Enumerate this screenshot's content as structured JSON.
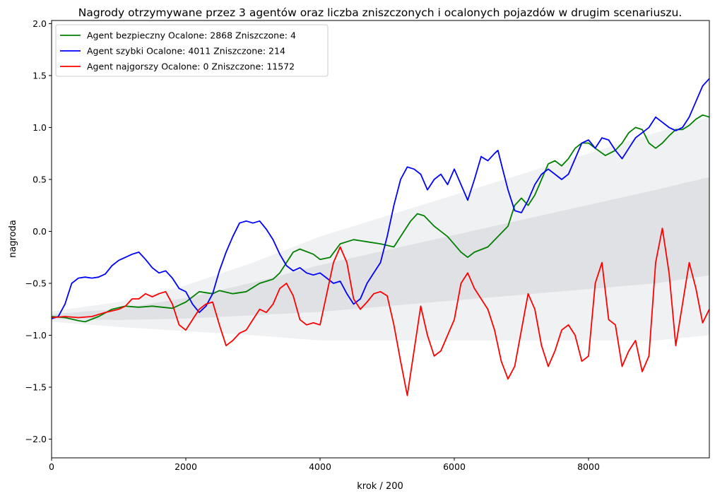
{
  "chart_data": {
    "type": "line",
    "title": "Nagrody otrzymywane przez 3 agentów oraz liczba zniszczonych i ocalonych pojazdów w drugim scenariuszu.",
    "xlabel": "krok / 200",
    "ylabel": "nagroda",
    "xlim": [
      0,
      9800
    ],
    "ylim": [
      -2.18,
      2.03
    ],
    "x_ticks": [
      0,
      2000,
      4000,
      6000,
      8000
    ],
    "y_ticks": [
      -2.0,
      -1.5,
      -1.0,
      -0.5,
      0.0,
      0.5,
      1.0,
      1.5,
      2.0
    ],
    "x_tick_labels": [
      "0",
      "2000",
      "4000",
      "6000",
      "8000"
    ],
    "y_tick_labels": [
      "−2.0",
      "−1.5",
      "−1.0",
      "−0.5",
      "0.0",
      "0.5",
      "1.0",
      "1.5",
      "2.0"
    ],
    "legend_position": "top-left",
    "background_band": {
      "x": [
        0,
        1000,
        2000,
        3000,
        4000,
        5000,
        6000,
        7000,
        8000,
        9000,
        9800
      ],
      "center": [
        -0.82,
        -0.8,
        -0.74,
        -0.65,
        -0.55,
        -0.45,
        -0.35,
        -0.25,
        -0.15,
        -0.05,
        0.05
      ],
      "halfwidth": [
        0.05,
        0.12,
        0.22,
        0.35,
        0.5,
        0.6,
        0.7,
        0.8,
        0.9,
        1.0,
        1.05
      ]
    },
    "series": [
      {
        "name": "Agent bezpieczny  Ocalone: 2868 Zniszczone: 4",
        "color": "#008000",
        "points": [
          [
            0,
            -0.82
          ],
          [
            200,
            -0.83
          ],
          [
            400,
            -0.86
          ],
          [
            500,
            -0.87
          ],
          [
            700,
            -0.82
          ],
          [
            900,
            -0.75
          ],
          [
            1100,
            -0.72
          ],
          [
            1300,
            -0.73
          ],
          [
            1500,
            -0.72
          ],
          [
            1800,
            -0.74
          ],
          [
            2000,
            -0.68
          ],
          [
            2200,
            -0.58
          ],
          [
            2400,
            -0.6
          ],
          [
            2500,
            -0.57
          ],
          [
            2700,
            -0.6
          ],
          [
            2900,
            -0.58
          ],
          [
            3100,
            -0.5
          ],
          [
            3300,
            -0.46
          ],
          [
            3400,
            -0.4
          ],
          [
            3500,
            -0.3
          ],
          [
            3600,
            -0.2
          ],
          [
            3700,
            -0.17
          ],
          [
            3900,
            -0.22
          ],
          [
            4000,
            -0.27
          ],
          [
            4150,
            -0.25
          ],
          [
            4300,
            -0.12
          ],
          [
            4500,
            -0.08
          ],
          [
            4700,
            -0.1
          ],
          [
            4900,
            -0.12
          ],
          [
            5100,
            -0.15
          ],
          [
            5200,
            -0.05
          ],
          [
            5350,
            0.1
          ],
          [
            5450,
            0.17
          ],
          [
            5550,
            0.15
          ],
          [
            5700,
            0.05
          ],
          [
            5900,
            -0.05
          ],
          [
            6100,
            -0.2
          ],
          [
            6200,
            -0.25
          ],
          [
            6300,
            -0.2
          ],
          [
            6500,
            -0.15
          ],
          [
            6650,
            -0.05
          ],
          [
            6800,
            0.05
          ],
          [
            6900,
            0.25
          ],
          [
            7000,
            0.32
          ],
          [
            7100,
            0.25
          ],
          [
            7200,
            0.35
          ],
          [
            7300,
            0.5
          ],
          [
            7400,
            0.65
          ],
          [
            7500,
            0.68
          ],
          [
            7600,
            0.63
          ],
          [
            7700,
            0.7
          ],
          [
            7800,
            0.8
          ],
          [
            7900,
            0.85
          ],
          [
            8000,
            0.85
          ],
          [
            8100,
            0.8
          ],
          [
            8250,
            0.73
          ],
          [
            8400,
            0.78
          ],
          [
            8500,
            0.85
          ],
          [
            8600,
            0.95
          ],
          [
            8700,
            1.0
          ],
          [
            8800,
            0.98
          ],
          [
            8900,
            0.85
          ],
          [
            9000,
            0.8
          ],
          [
            9100,
            0.85
          ],
          [
            9200,
            0.92
          ],
          [
            9300,
            0.98
          ],
          [
            9400,
            0.98
          ],
          [
            9500,
            1.02
          ],
          [
            9600,
            1.08
          ],
          [
            9700,
            1.12
          ],
          [
            9800,
            1.1
          ]
        ]
      },
      {
        "name": "Agent szybki Ocalone: 4011 Zniszczone: 214",
        "color": "#0000ff",
        "points": [
          [
            0,
            -0.84
          ],
          [
            100,
            -0.82
          ],
          [
            200,
            -0.7
          ],
          [
            300,
            -0.5
          ],
          [
            400,
            -0.45
          ],
          [
            500,
            -0.44
          ],
          [
            600,
            -0.45
          ],
          [
            700,
            -0.44
          ],
          [
            800,
            -0.41
          ],
          [
            900,
            -0.33
          ],
          [
            1000,
            -0.28
          ],
          [
            1100,
            -0.25
          ],
          [
            1200,
            -0.22
          ],
          [
            1300,
            -0.2
          ],
          [
            1400,
            -0.27
          ],
          [
            1500,
            -0.35
          ],
          [
            1600,
            -0.4
          ],
          [
            1700,
            -0.38
          ],
          [
            1800,
            -0.45
          ],
          [
            1900,
            -0.55
          ],
          [
            2000,
            -0.58
          ],
          [
            2100,
            -0.7
          ],
          [
            2200,
            -0.78
          ],
          [
            2300,
            -0.72
          ],
          [
            2400,
            -0.6
          ],
          [
            2500,
            -0.38
          ],
          [
            2600,
            -0.2
          ],
          [
            2700,
            -0.05
          ],
          [
            2800,
            0.08
          ],
          [
            2900,
            0.1
          ],
          [
            3000,
            0.08
          ],
          [
            3100,
            0.1
          ],
          [
            3200,
            0.02
          ],
          [
            3300,
            -0.08
          ],
          [
            3400,
            -0.22
          ],
          [
            3500,
            -0.33
          ],
          [
            3600,
            -0.38
          ],
          [
            3700,
            -0.35
          ],
          [
            3800,
            -0.4
          ],
          [
            3900,
            -0.42
          ],
          [
            4000,
            -0.4
          ],
          [
            4100,
            -0.45
          ],
          [
            4200,
            -0.5
          ],
          [
            4300,
            -0.48
          ],
          [
            4400,
            -0.6
          ],
          [
            4500,
            -0.7
          ],
          [
            4600,
            -0.65
          ],
          [
            4700,
            -0.5
          ],
          [
            4800,
            -0.4
          ],
          [
            4900,
            -0.3
          ],
          [
            5000,
            -0.05
          ],
          [
            5100,
            0.25
          ],
          [
            5200,
            0.5
          ],
          [
            5300,
            0.62
          ],
          [
            5400,
            0.6
          ],
          [
            5500,
            0.55
          ],
          [
            5600,
            0.4
          ],
          [
            5700,
            0.5
          ],
          [
            5800,
            0.55
          ],
          [
            5900,
            0.45
          ],
          [
            6000,
            0.6
          ],
          [
            6100,
            0.45
          ],
          [
            6200,
            0.3
          ],
          [
            6300,
            0.5
          ],
          [
            6400,
            0.72
          ],
          [
            6500,
            0.68
          ],
          [
            6600,
            0.75
          ],
          [
            6650,
            0.78
          ],
          [
            6700,
            0.65
          ],
          [
            6800,
            0.4
          ],
          [
            6900,
            0.2
          ],
          [
            7000,
            0.18
          ],
          [
            7100,
            0.3
          ],
          [
            7200,
            0.45
          ],
          [
            7300,
            0.55
          ],
          [
            7400,
            0.6
          ],
          [
            7500,
            0.55
          ],
          [
            7600,
            0.5
          ],
          [
            7700,
            0.55
          ],
          [
            7800,
            0.7
          ],
          [
            7900,
            0.85
          ],
          [
            8000,
            0.88
          ],
          [
            8100,
            0.8
          ],
          [
            8200,
            0.9
          ],
          [
            8300,
            0.88
          ],
          [
            8400,
            0.78
          ],
          [
            8500,
            0.7
          ],
          [
            8600,
            0.8
          ],
          [
            8700,
            0.9
          ],
          [
            8800,
            0.95
          ],
          [
            8900,
            1.0
          ],
          [
            9000,
            1.1
          ],
          [
            9100,
            1.05
          ],
          [
            9200,
            1.0
          ],
          [
            9300,
            0.97
          ],
          [
            9400,
            1.0
          ],
          [
            9500,
            1.1
          ],
          [
            9600,
            1.25
          ],
          [
            9700,
            1.4
          ],
          [
            9800,
            1.47
          ]
        ]
      },
      {
        "name": "Agent najgorszy  Ocalone: 0 Zniszczone: 11572",
        "color": "#ff0000",
        "points": [
          [
            0,
            -0.83
          ],
          [
            200,
            -0.82
          ],
          [
            400,
            -0.83
          ],
          [
            600,
            -0.82
          ],
          [
            800,
            -0.78
          ],
          [
            1000,
            -0.75
          ],
          [
            1100,
            -0.72
          ],
          [
            1200,
            -0.65
          ],
          [
            1300,
            -0.65
          ],
          [
            1400,
            -0.6
          ],
          [
            1500,
            -0.63
          ],
          [
            1600,
            -0.6
          ],
          [
            1700,
            -0.58
          ],
          [
            1800,
            -0.7
          ],
          [
            1900,
            -0.9
          ],
          [
            2000,
            -0.95
          ],
          [
            2100,
            -0.85
          ],
          [
            2200,
            -0.75
          ],
          [
            2300,
            -0.7
          ],
          [
            2400,
            -0.68
          ],
          [
            2500,
            -0.9
          ],
          [
            2600,
            -1.1
          ],
          [
            2700,
            -1.05
          ],
          [
            2800,
            -0.98
          ],
          [
            2900,
            -0.95
          ],
          [
            3000,
            -0.85
          ],
          [
            3100,
            -0.75
          ],
          [
            3200,
            -0.78
          ],
          [
            3300,
            -0.7
          ],
          [
            3400,
            -0.55
          ],
          [
            3500,
            -0.5
          ],
          [
            3600,
            -0.62
          ],
          [
            3700,
            -0.85
          ],
          [
            3800,
            -0.9
          ],
          [
            3900,
            -0.88
          ],
          [
            4000,
            -0.9
          ],
          [
            4100,
            -0.6
          ],
          [
            4200,
            -0.3
          ],
          [
            4300,
            -0.15
          ],
          [
            4400,
            -0.3
          ],
          [
            4500,
            -0.65
          ],
          [
            4600,
            -0.75
          ],
          [
            4700,
            -0.68
          ],
          [
            4800,
            -0.6
          ],
          [
            4900,
            -0.58
          ],
          [
            5000,
            -0.62
          ],
          [
            5100,
            -0.9
          ],
          [
            5200,
            -1.25
          ],
          [
            5300,
            -1.58
          ],
          [
            5400,
            -1.15
          ],
          [
            5500,
            -0.72
          ],
          [
            5600,
            -1.0
          ],
          [
            5700,
            -1.2
          ],
          [
            5800,
            -1.15
          ],
          [
            5900,
            -1.0
          ],
          [
            6000,
            -0.85
          ],
          [
            6100,
            -0.5
          ],
          [
            6200,
            -0.4
          ],
          [
            6300,
            -0.55
          ],
          [
            6400,
            -0.65
          ],
          [
            6500,
            -0.75
          ],
          [
            6600,
            -0.95
          ],
          [
            6700,
            -1.25
          ],
          [
            6800,
            -1.42
          ],
          [
            6900,
            -1.3
          ],
          [
            7000,
            -0.95
          ],
          [
            7100,
            -0.6
          ],
          [
            7200,
            -0.75
          ],
          [
            7300,
            -1.1
          ],
          [
            7400,
            -1.3
          ],
          [
            7500,
            -1.15
          ],
          [
            7600,
            -0.95
          ],
          [
            7700,
            -0.9
          ],
          [
            7800,
            -1.0
          ],
          [
            7900,
            -1.25
          ],
          [
            8000,
            -1.2
          ],
          [
            8100,
            -0.5
          ],
          [
            8200,
            -0.3
          ],
          [
            8300,
            -0.85
          ],
          [
            8400,
            -0.9
          ],
          [
            8500,
            -1.3
          ],
          [
            8600,
            -1.15
          ],
          [
            8700,
            -1.05
          ],
          [
            8800,
            -1.35
          ],
          [
            8900,
            -1.2
          ],
          [
            9000,
            -0.3
          ],
          [
            9100,
            0.03
          ],
          [
            9200,
            -0.4
          ],
          [
            9300,
            -1.1
          ],
          [
            9400,
            -0.7
          ],
          [
            9500,
            -0.3
          ],
          [
            9600,
            -0.55
          ],
          [
            9700,
            -0.88
          ],
          [
            9800,
            -0.75
          ]
        ]
      }
    ]
  }
}
